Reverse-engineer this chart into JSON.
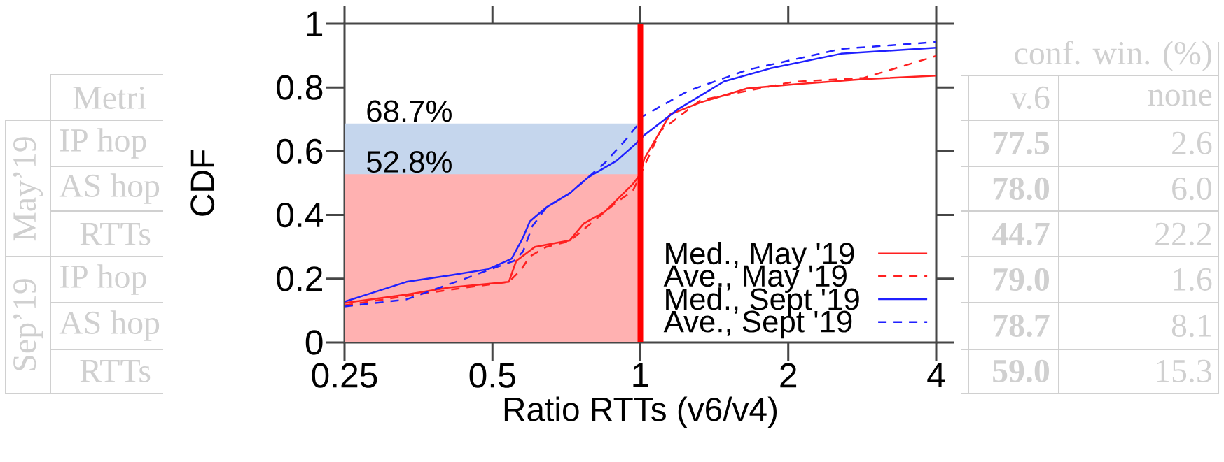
{
  "chart_data": {
    "type": "line",
    "xlabel": "Ratio RTTs (v6/v4)",
    "ylabel": "CDF",
    "log": "x",
    "xlim": [
      0.25,
      4
    ],
    "xticks": [
      0.25,
      0.5,
      1,
      2,
      4
    ],
    "ylim": [
      0,
      1
    ],
    "yticks": [
      0,
      0.2,
      0.4,
      0.6,
      0.8,
      1
    ],
    "legend": "bottom right",
    "marker": "none",
    "ref_lines": [
      {
        "axis": "x",
        "value": 1,
        "color": "#ff0000",
        "line_style": "solid"
      }
    ],
    "series": [
      {
        "type": "area",
        "color": "#c5d6ed",
        "x": [
          0.25,
          1
        ],
        "values": [
          0.687,
          0.687
        ],
        "value_labels": [
          "68.7%",
          null
        ]
      },
      {
        "type": "area",
        "color": "#ffb1b1",
        "x": [
          0.25,
          1
        ],
        "values": [
          0.528,
          0.528
        ],
        "value_labels": [
          "52.8%",
          null
        ]
      },
      {
        "name": "Med., May '19",
        "color": "#ff2020",
        "line_style": "solid",
        "x": [
          0.25,
          0.334,
          0.407,
          0.54,
          0.559,
          0.61,
          0.718,
          0.767,
          0.846,
          0.965,
          1.0,
          1.019,
          1.15,
          1.325,
          1.65,
          2.05,
          2.85,
          4
        ],
        "values": [
          0.124,
          0.15,
          0.172,
          0.19,
          0.256,
          0.3,
          0.32,
          0.373,
          0.41,
          0.497,
          0.528,
          0.577,
          0.716,
          0.753,
          0.797,
          0.81,
          0.826,
          0.837
        ]
      },
      {
        "name": "Ave., May '19",
        "color": "#ff2020",
        "line_style": "dashed",
        "x": [
          0.25,
          0.407,
          0.54,
          0.571,
          0.596,
          0.644,
          0.718,
          0.894,
          0.965,
          1.1,
          1.325,
          2.05,
          2.85,
          4
        ],
        "values": [
          0.117,
          0.165,
          0.19,
          0.227,
          0.27,
          0.3,
          0.318,
          0.44,
          0.475,
          0.665,
          0.76,
          0.818,
          0.83,
          0.899
        ]
      },
      {
        "name": "Med., Sept '19",
        "color": "#2020ff",
        "line_style": "solid",
        "x": [
          0.25,
          0.334,
          0.416,
          0.49,
          0.547,
          0.577,
          0.596,
          0.644,
          0.718,
          0.784,
          0.894,
          0.975,
          1.019,
          1.19,
          1.48,
          1.84,
          2.56,
          4
        ],
        "values": [
          0.128,
          0.19,
          0.212,
          0.23,
          0.263,
          0.329,
          0.38,
          0.424,
          0.468,
          0.519,
          0.57,
          0.621,
          0.651,
          0.731,
          0.819,
          0.86,
          0.906,
          0.925
        ]
      },
      {
        "name": "Ave., Sept '19",
        "color": "#2020ff",
        "line_style": "dashed",
        "x": [
          0.25,
          0.334,
          0.434,
          0.49,
          0.553,
          0.577,
          0.603,
          0.644,
          0.718,
          0.846,
          0.934,
          0.984,
          1.01,
          1.25,
          1.65,
          2.56,
          4
        ],
        "values": [
          0.113,
          0.135,
          0.197,
          0.227,
          0.256,
          0.285,
          0.365,
          0.424,
          0.468,
          0.563,
          0.636,
          0.68,
          0.709,
          0.789,
          0.855,
          0.921,
          0.943
        ]
      }
    ],
    "annotations": [
      "conf. win. (%)",
      "Metri",
      "v.6",
      "none",
      "May’19",
      "Sep’19",
      "IP hop",
      "77.5",
      "2.6",
      "AS hop",
      "78.0",
      "6.0",
      "RTTs",
      "44.7",
      "22.2",
      "IP hop",
      "79.0",
      "1.6",
      "AS hop",
      "78.7",
      "8.1",
      "RTTs",
      "59.0",
      "15.3"
    ]
  }
}
